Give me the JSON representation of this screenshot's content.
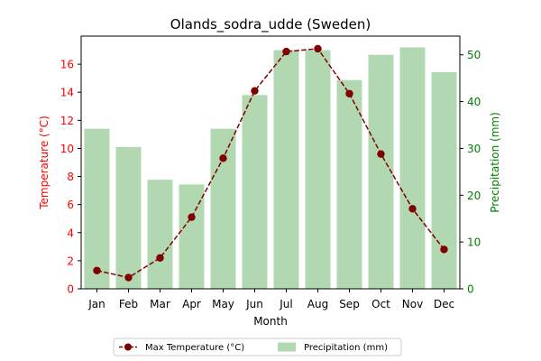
{
  "chart_data": {
    "type": "bar+line",
    "title": "Olands_sodra_udde (Sweden)",
    "xlabel": "Month",
    "ylabel_left": "Temperature (°C)",
    "ylabel_right": "Precipitation (mm)",
    "categories": [
      "Jan",
      "Feb",
      "Mar",
      "Apr",
      "May",
      "Jun",
      "Jul",
      "Aug",
      "Sep",
      "Oct",
      "Nov",
      "Dec"
    ],
    "ylim_left": [
      0,
      18
    ],
    "ylim_right": [
      0,
      54
    ],
    "yticks_left": [
      0,
      2,
      4,
      6,
      8,
      10,
      12,
      14,
      16
    ],
    "yticks_right": [
      0,
      10,
      20,
      30,
      40,
      50
    ],
    "series": [
      {
        "name": "Max Temperature (°C)",
        "type": "line",
        "axis": "left",
        "color": "#800000",
        "values": [
          1.3,
          0.8,
          2.2,
          5.1,
          9.3,
          14.1,
          16.9,
          17.1,
          13.9,
          9.6,
          5.7,
          2.8
        ]
      },
      {
        "name": "Precipitation (mm)",
        "type": "bar",
        "axis": "right",
        "color": "#b1d8b0",
        "values": [
          34.2,
          30.3,
          23.3,
          22.3,
          34.2,
          41.4,
          51.0,
          51.0,
          44.6,
          50.0,
          51.6,
          46.3
        ]
      }
    ],
    "colors": {
      "left_axis": "#ff0000",
      "right_axis": "#008000"
    },
    "legend_placement": "bottom-center",
    "grid": false
  }
}
